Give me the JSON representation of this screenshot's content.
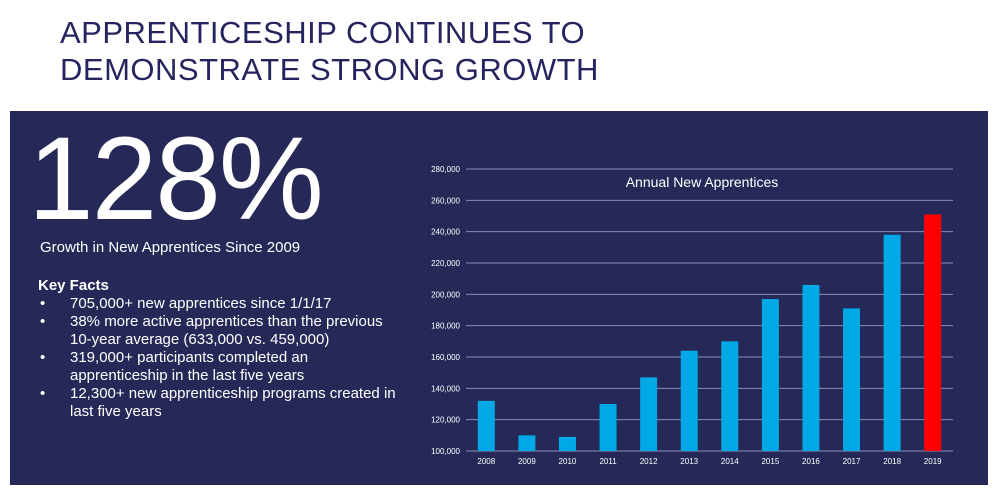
{
  "slide": {
    "title_line1": "APPRENTICESHIP CONTINUES TO",
    "title_line2": "DEMONSTRATE STRONG GROWTH"
  },
  "stat": {
    "value": "128%",
    "caption": "Growth in New Apprentices Since 2009"
  },
  "key_facts": {
    "heading": "Key Facts",
    "items": [
      "705,000+ new apprentices since 1/1/17",
      "38% more active apprentices than the previous 10-year average (633,000 vs. 459,000)",
      "319,000+ participants completed an apprenticeship in the last five years",
      "12,300+ new apprenticeship programs created in last five years"
    ]
  },
  "colors": {
    "panel": "#262957",
    "bar": "#00a9e6",
    "highlight_bar": "#ff0000",
    "grid": "#8a8db0",
    "title_text": "#26245e"
  },
  "chart_data": {
    "type": "bar",
    "title": "Annual New Apprentices",
    "categories": [
      "2008",
      "2009",
      "2010",
      "2011",
      "2012",
      "2013",
      "2014",
      "2015",
      "2016",
      "2017",
      "2018",
      "2019"
    ],
    "values": [
      132000,
      110000,
      109000,
      130000,
      147000,
      164000,
      170000,
      197000,
      206000,
      191000,
      238000,
      251000
    ],
    "highlight_index": 11,
    "ylim": [
      100000,
      280000
    ],
    "yticks": [
      100000,
      120000,
      140000,
      160000,
      180000,
      200000,
      220000,
      240000,
      260000,
      280000
    ],
    "ytick_labels": [
      "100,000",
      "120,000",
      "140,000",
      "160,000",
      "180,000",
      "200,000",
      "220,000",
      "240,000",
      "260,000",
      "280,000"
    ],
    "grid": true,
    "legend": "none"
  }
}
